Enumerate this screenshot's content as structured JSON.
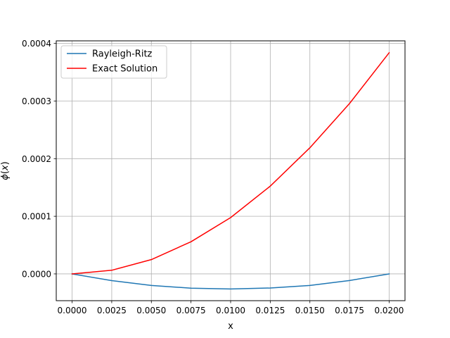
{
  "chart_data": {
    "type": "line",
    "xlabel": "x",
    "ylabel": "φ(x)",
    "ylabel_parts": {
      "symbol": "ϕ",
      "open": "(",
      "var": "x",
      "close": ")"
    },
    "xlim": [
      -0.001,
      0.021
    ],
    "ylim": [
      -4.65e-05,
      0.0004045
    ],
    "grid": true,
    "legend_position": "upper-left",
    "x_ticks": [
      0.0,
      0.0025,
      0.005,
      0.0075,
      0.01,
      0.0125,
      0.015,
      0.0175,
      0.02
    ],
    "x_tick_labels": [
      "0.0000",
      "0.0025",
      "0.0050",
      "0.0075",
      "0.0100",
      "0.0125",
      "0.0150",
      "0.0175",
      "0.0200"
    ],
    "y_ticks": [
      0.0,
      0.0001,
      0.0002,
      0.0003,
      0.0004
    ],
    "y_tick_labels": [
      "0.0000",
      "0.0001",
      "0.0002",
      "0.0003",
      "0.0004"
    ],
    "series": [
      {
        "name": "Rayleigh-Ritz",
        "color": "#1f77b4",
        "x": [
          0.0,
          0.0025,
          0.005,
          0.0075,
          0.01,
          0.0125,
          0.015,
          0.0175,
          0.02
        ],
        "y": [
          0.0,
          -1.17e-05,
          -2.01e-05,
          -2.48e-05,
          -2.62e-05,
          -2.45e-05,
          -2e-05,
          -1.15e-05,
          0.0
        ]
      },
      {
        "name": "Exact Solution",
        "color": "#ff0000",
        "x": [
          0.0,
          0.0025,
          0.005,
          0.0075,
          0.01,
          0.0125,
          0.015,
          0.0175,
          0.02
        ],
        "y": [
          0.0,
          6.3e-06,
          2.48e-05,
          5.58e-05,
          9.77e-05,
          0.0001523,
          0.0002189,
          0.0002957,
          0.0003838
        ]
      }
    ]
  }
}
